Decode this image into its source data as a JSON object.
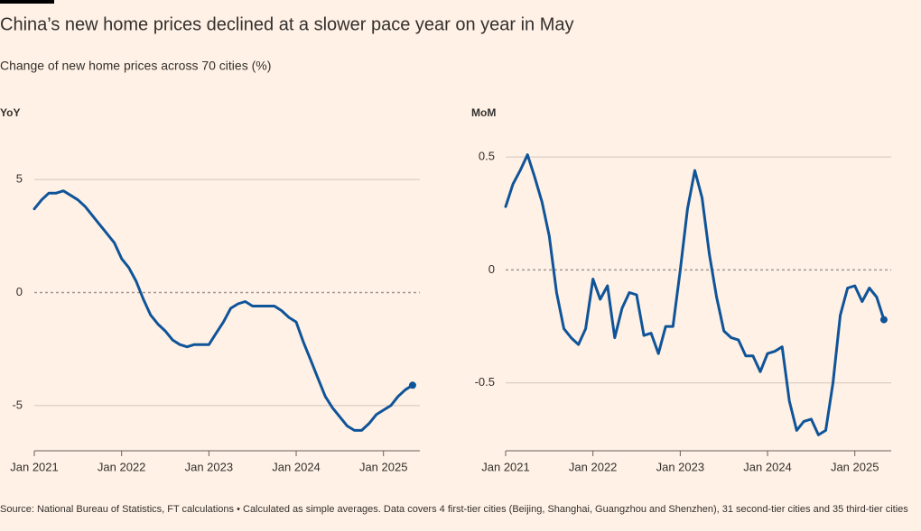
{
  "title": "China’s new home prices declined at a slower pace year on year in May",
  "subtitle": "Change of new home prices across 70 cities (%)",
  "source": "Source: National Bureau of Statistics, FT calculations • Calculated as simple averages. Data covers 4 first-tier cities (Beijing, Shanghai, Guangzhou and Shenzhen), 31 second-tier cities and 35 third-tier cities",
  "chart_data": [
    {
      "type": "line",
      "title": "YoY",
      "color": "#0f5499",
      "grid": true,
      "x": [
        "2021-01",
        "2021-02",
        "2021-03",
        "2021-04",
        "2021-05",
        "2021-06",
        "2021-07",
        "2021-08",
        "2021-09",
        "2021-10",
        "2021-11",
        "2021-12",
        "2022-01",
        "2022-02",
        "2022-03",
        "2022-04",
        "2022-05",
        "2022-06",
        "2022-07",
        "2022-08",
        "2022-09",
        "2022-10",
        "2022-11",
        "2022-12",
        "2023-01",
        "2023-02",
        "2023-03",
        "2023-04",
        "2023-05",
        "2023-06",
        "2023-07",
        "2023-08",
        "2023-09",
        "2023-10",
        "2023-11",
        "2023-12",
        "2024-01",
        "2024-02",
        "2024-03",
        "2024-04",
        "2024-05",
        "2024-06",
        "2024-07",
        "2024-08",
        "2024-09",
        "2024-10",
        "2024-11",
        "2024-12",
        "2025-01",
        "2025-02",
        "2025-03",
        "2025-04",
        "2025-05"
      ],
      "values": [
        3.7,
        4.1,
        4.4,
        4.4,
        4.5,
        4.3,
        4.1,
        3.8,
        3.4,
        3.0,
        2.6,
        2.2,
        1.5,
        1.1,
        0.5,
        -0.3,
        -1.0,
        -1.4,
        -1.7,
        -2.1,
        -2.3,
        -2.4,
        -2.3,
        -2.3,
        -2.3,
        -1.8,
        -1.3,
        -0.7,
        -0.5,
        -0.4,
        -0.6,
        -0.6,
        -0.6,
        -0.6,
        -0.8,
        -1.1,
        -1.3,
        -2.2,
        -3.0,
        -3.8,
        -4.6,
        -5.1,
        -5.5,
        -5.9,
        -6.1,
        -6.1,
        -5.8,
        -5.4,
        -5.2,
        -5.0,
        -4.6,
        -4.3,
        -4.1
      ],
      "xlim": [
        "2021-01",
        "2025-06"
      ],
      "xticks": [
        {
          "value": "2021-01",
          "label": "Jan 2021"
        },
        {
          "value": "2022-01",
          "label": "Jan 2022"
        },
        {
          "value": "2023-01",
          "label": "Jan 2023"
        },
        {
          "value": "2024-01",
          "label": "Jan 2024"
        },
        {
          "value": "2025-01",
          "label": "Jan 2025"
        }
      ],
      "ylim": [
        -7,
        7
      ],
      "yticks": [
        -5,
        0,
        5
      ]
    },
    {
      "type": "line",
      "title": "MoM",
      "color": "#0f5499",
      "grid": true,
      "x": [
        "2021-01",
        "2021-02",
        "2021-03",
        "2021-04",
        "2021-05",
        "2021-06",
        "2021-07",
        "2021-08",
        "2021-09",
        "2021-10",
        "2021-11",
        "2021-12",
        "2022-01",
        "2022-02",
        "2022-03",
        "2022-04",
        "2022-05",
        "2022-06",
        "2022-07",
        "2022-08",
        "2022-09",
        "2022-10",
        "2022-11",
        "2022-12",
        "2023-01",
        "2023-02",
        "2023-03",
        "2023-04",
        "2023-05",
        "2023-06",
        "2023-07",
        "2023-08",
        "2023-09",
        "2023-10",
        "2023-11",
        "2023-12",
        "2024-01",
        "2024-02",
        "2024-03",
        "2024-04",
        "2024-05",
        "2024-06",
        "2024-07",
        "2024-08",
        "2024-09",
        "2024-10",
        "2024-11",
        "2024-12",
        "2025-01",
        "2025-02",
        "2025-03",
        "2025-04",
        "2025-05"
      ],
      "values": [
        0.28,
        0.38,
        0.44,
        0.51,
        0.41,
        0.3,
        0.15,
        -0.1,
        -0.26,
        -0.3,
        -0.33,
        -0.26,
        -0.04,
        -0.13,
        -0.07,
        -0.3,
        -0.17,
        -0.1,
        -0.11,
        -0.29,
        -0.28,
        -0.37,
        -0.25,
        -0.25,
        0.0,
        0.27,
        0.44,
        0.32,
        0.07,
        -0.12,
        -0.27,
        -0.3,
        -0.31,
        -0.38,
        -0.38,
        -0.45,
        -0.37,
        -0.36,
        -0.34,
        -0.58,
        -0.71,
        -0.67,
        -0.66,
        -0.73,
        -0.71,
        -0.5,
        -0.2,
        -0.08,
        -0.07,
        -0.14,
        -0.08,
        -0.12,
        -0.22
      ],
      "xlim": [
        "2021-01",
        "2025-06"
      ],
      "xticks": [
        {
          "value": "2021-01",
          "label": "Jan 2021"
        },
        {
          "value": "2022-01",
          "label": "Jan 2022"
        },
        {
          "value": "2023-01",
          "label": "Jan 2023"
        },
        {
          "value": "2024-01",
          "label": "Jan 2024"
        },
        {
          "value": "2025-01",
          "label": "Jan 2025"
        }
      ],
      "ylim": [
        -0.8,
        0.6
      ],
      "yticks": [
        -0.5,
        0,
        0.5
      ]
    }
  ]
}
